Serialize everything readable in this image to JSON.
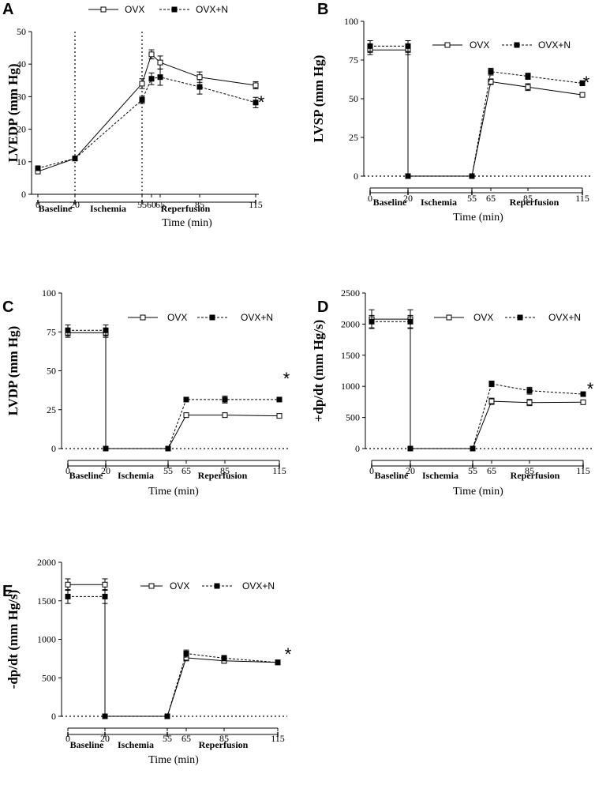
{
  "figure": {
    "time_unit_label": "Time (min)",
    "phases": [
      "Baseline",
      "Ischemia",
      "Reperfusion"
    ],
    "legend": [
      "OVX",
      "OVX+N"
    ],
    "significance_mark": "*"
  },
  "chart_data": [
    {
      "panel": "A",
      "type": "line",
      "ylabel": "LVEDP (mm Hg)",
      "xlabel": "Time (min)",
      "ylim": [
        0,
        50
      ],
      "yticks": [
        0,
        10,
        20,
        30,
        40,
        50
      ],
      "x": [
        0,
        20,
        55,
        60,
        65,
        85,
        115
      ],
      "xtick_labels": [
        "0",
        "20",
        "55",
        "60",
        "65",
        "85",
        "115"
      ],
      "vlines": [
        20,
        55
      ],
      "series": [
        {
          "name": "OVX",
          "marker": "open-square",
          "style": "solid",
          "values": [
            7,
            11,
            34,
            43,
            40.5,
            36,
            33.5
          ],
          "errors": [
            0.7,
            0.6,
            1.5,
            1.4,
            2.0,
            1.6,
            1.1
          ]
        },
        {
          "name": "OVX+N",
          "marker": "filled-square",
          "style": "dashed",
          "values": [
            8,
            11,
            29,
            35.5,
            36,
            33,
            28.2
          ],
          "errors": [
            0.7,
            0.6,
            1.1,
            1.8,
            2.5,
            2.2,
            1.6
          ]
        }
      ],
      "annotation": "*"
    },
    {
      "panel": "B",
      "type": "line",
      "ylabel": "LVSP (mm Hg)",
      "xlabel": "Time (min)",
      "ylim": [
        0,
        100
      ],
      "yticks": [
        0,
        25,
        50,
        75,
        100
      ],
      "x": [
        0,
        20,
        20,
        55,
        55,
        65,
        85,
        115
      ],
      "xticks": [
        0,
        20,
        55,
        65,
        85,
        115
      ],
      "xtick_labels": [
        "0",
        "20",
        "55",
        "65",
        "85",
        "115"
      ],
      "series": [
        {
          "name": "OVX",
          "marker": "open-square",
          "style": "solid",
          "values": [
            81.5,
            81.5,
            0,
            0,
            0,
            61,
            57.5,
            52.5
          ],
          "errors": [
            3,
            3,
            0,
            0,
            0,
            1.8,
            2.2,
            1.2
          ]
        },
        {
          "name": "OVX+N",
          "marker": "filled-square",
          "style": "dashed",
          "values": [
            84,
            84,
            0,
            0,
            0,
            67.5,
            64.5,
            60
          ],
          "errors": [
            3.5,
            3.5,
            0,
            0,
            0,
            2.2,
            2,
            1.6
          ]
        }
      ],
      "annotation": "*"
    },
    {
      "panel": "C",
      "type": "line",
      "ylabel": "LVDP (mm Hg)",
      "xlabel": "Time (min)",
      "ylim": [
        0,
        100
      ],
      "yticks": [
        0,
        25,
        50,
        75,
        100
      ],
      "x": [
        0,
        20,
        20,
        55,
        55,
        65,
        85,
        115
      ],
      "xticks": [
        0,
        20,
        55,
        65,
        85,
        115
      ],
      "xtick_labels": [
        "0",
        "20",
        "55",
        "65",
        "85",
        "115"
      ],
      "series": [
        {
          "name": "OVX",
          "marker": "open-square",
          "style": "solid",
          "values": [
            74.5,
            74.5,
            0,
            0,
            0,
            21.5,
            21.5,
            21
          ],
          "errors": [
            3,
            3,
            0,
            0,
            0,
            1,
            1,
            0.8
          ]
        },
        {
          "name": "OVX+N",
          "marker": "filled-square",
          "style": "dashed",
          "values": [
            76,
            76,
            0,
            0,
            0,
            31.5,
            31.5,
            31.5
          ],
          "errors": [
            3.5,
            3.5,
            0,
            0,
            0,
            1.2,
            2.2,
            1
          ]
        }
      ],
      "annotation": "*"
    },
    {
      "panel": "D",
      "type": "line",
      "ylabel": "+dp/dt (mm Hg/s)",
      "xlabel": "Time (min)",
      "ylim": [
        0,
        2500
      ],
      "yticks": [
        0,
        500,
        1000,
        1500,
        2000,
        2500
      ],
      "x": [
        0,
        20,
        20,
        55,
        55,
        65,
        85,
        115
      ],
      "xticks": [
        0,
        20,
        55,
        65,
        85,
        115
      ],
      "xtick_labels": [
        "0",
        "20",
        "55",
        "65",
        "85",
        "115"
      ],
      "series": [
        {
          "name": "OVX",
          "marker": "open-square",
          "style": "solid",
          "values": [
            2080,
            2080,
            0,
            0,
            0,
            760,
            740,
            745
          ],
          "errors": [
            150,
            150,
            0,
            0,
            0,
            50,
            50,
            30
          ]
        },
        {
          "name": "OVX+N",
          "marker": "filled-square",
          "style": "dashed",
          "values": [
            2040,
            2040,
            0,
            0,
            0,
            1040,
            930,
            875
          ],
          "errors": [
            100,
            100,
            0,
            0,
            0,
            45,
            55,
            25
          ]
        }
      ],
      "annotation": "*"
    },
    {
      "panel": "E",
      "type": "line",
      "ylabel": "-dp/dt (mm Hg/s)",
      "xlabel": "Time (min)",
      "ylim": [
        0,
        2000
      ],
      "yticks": [
        0,
        500,
        1000,
        1500,
        2000
      ],
      "x": [
        0,
        20,
        20,
        55,
        55,
        65,
        85,
        115
      ],
      "xticks": [
        0,
        20,
        55,
        65,
        85,
        115
      ],
      "xtick_labels": [
        "0",
        "20",
        "55",
        "65",
        "85",
        "115"
      ],
      "series": [
        {
          "name": "OVX",
          "marker": "open-square",
          "style": "solid",
          "values": [
            1710,
            1710,
            0,
            0,
            0,
            760,
            720,
            700
          ],
          "errors": [
            75,
            75,
            0,
            0,
            0,
            40,
            30,
            25
          ]
        },
        {
          "name": "OVX+N",
          "marker": "filled-square",
          "style": "dashed",
          "values": [
            1555,
            1555,
            0,
            0,
            0,
            815,
            755,
            700
          ],
          "errors": [
            90,
            90,
            0,
            0,
            0,
            45,
            35,
            25
          ]
        }
      ],
      "annotation": "*"
    }
  ]
}
